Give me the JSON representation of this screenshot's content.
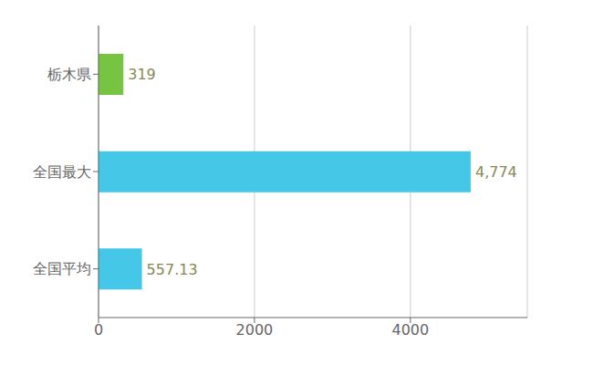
{
  "chart_data": {
    "type": "bar",
    "orientation": "horizontal",
    "categories": [
      "全国平均",
      "全国最大",
      "栃木県"
    ],
    "values": [
      557.13,
      4774,
      319
    ],
    "value_labels": [
      "557.13",
      "4,774",
      "319"
    ],
    "data_labels": true,
    "colors": [
      "#45c8e8",
      "#45c8e8",
      "#76c442"
    ],
    "xlim": [
      0,
      5500
    ],
    "xticks": [
      0,
      2000,
      4000
    ],
    "grid": true
  }
}
